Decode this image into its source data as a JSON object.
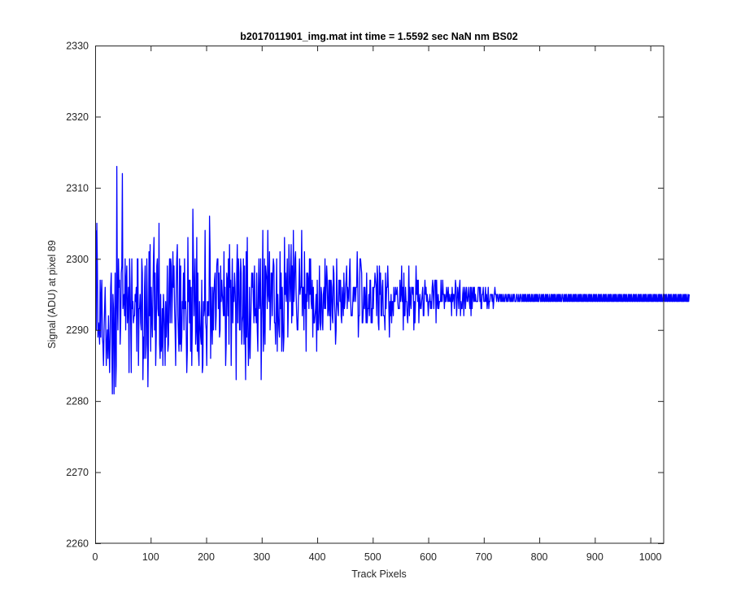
{
  "chart_data": {
    "type": "line",
    "title": "b2017011901_img.mat int time = 1.5592 sec  NaN nm BS02",
    "xlabel": "Track Pixels",
    "ylabel": "Signal (ADU) at pixel 89",
    "xlim": [
      0,
      1024
    ],
    "ylim": [
      2260,
      2330
    ],
    "xticks": [
      0,
      100,
      200,
      300,
      400,
      500,
      600,
      700,
      800,
      900,
      1000
    ],
    "yticks": [
      2260,
      2270,
      2280,
      2290,
      2300,
      2310,
      2320,
      2330
    ],
    "grid": false,
    "series": [
      {
        "color": "#0000ff",
        "x_start": 1,
        "x_step": 1,
        "y": [
          2304,
          2290,
          2305,
          2299,
          2289,
          2291,
          2290,
          2288,
          2297,
          2289,
          2295,
          2297,
          2289,
          2288,
          2285,
          2290,
          2293,
          2296,
          2291,
          2285,
          2288,
          2290,
          2286,
          2292,
          2288,
          2284,
          2289,
          2296,
          2298,
          2288,
          2281,
          2295,
          2293,
          2281,
          2290,
          2298,
          2282,
          2285,
          2313,
          2294,
          2290,
          2300,
          2296,
          2297,
          2288,
          2291,
          2298,
          2299,
          2312,
          2293,
          2294,
          2295,
          2292,
          2300,
          2290,
          2297,
          2299,
          2291,
          2293,
          2296,
          2284,
          2300,
          2296,
          2291,
          2284,
          2300,
          2293,
          2294,
          2291,
          2292,
          2292,
          2295,
          2294,
          2296,
          2287,
          2300,
          2300,
          2285,
          2293,
          2293,
          2295,
          2291,
          2290,
          2300,
          2298,
          2283,
          2289,
          2286,
          2296,
          2299,
          2286,
          2288,
          2300,
          2293,
          2282,
          2289,
          2301,
          2292,
          2302,
          2287,
          2296,
          2292,
          2289,
          2295,
          2300,
          2303,
          2290,
          2298,
          2285,
          2289,
          2299,
          2300,
          2293,
          2292,
          2305,
          2288,
          2286,
          2295,
          2287,
          2288,
          2293,
          2285,
          2295,
          2293,
          2290,
          2285,
          2294,
          2289,
          2292,
          2299,
          2287,
          2288,
          2296,
          2300,
          2291,
          2300,
          2299,
          2291,
          2295,
          2301,
          2296,
          2299,
          2293,
          2290,
          2285,
          2296,
          2300,
          2302,
          2292,
          2289,
          2287,
          2300,
          2288,
          2299,
          2287,
          2289,
          2294,
          2293,
          2298,
          2290,
          2300,
          2293,
          2294,
          2290,
          2284,
          2287,
          2303,
          2294,
          2297,
          2291,
          2297,
          2287,
          2296,
          2285,
          2291,
          2307,
          2300,
          2292,
          2296,
          2300,
          2288,
          2290,
          2303,
          2287,
          2298,
          2287,
          2285,
          2294,
          2291,
          2289,
          2288,
          2297,
          2284,
          2285,
          2294,
          2292,
          2293,
          2304,
          2291,
          2290,
          2285,
          2294,
          2292,
          2294,
          2292,
          2306,
          2301,
          2286,
          2296,
          2291,
          2288,
          2296,
          2290,
          2295,
          2297,
          2298,
          2290,
          2292,
          2299,
          2300,
          2300,
          2293,
          2298,
          2289,
          2290,
          2299,
          2294,
          2297,
          2295,
          2294,
          2292,
          2301,
          2292,
          2296,
          2285,
          2288,
          2298,
          2297,
          2292,
          2300,
          2288,
          2302,
          2296,
          2297,
          2285,
          2294,
          2300,
          2291,
          2296,
          2294,
          2298,
          2296,
          2293,
          2283,
          2298,
          2302,
          2291,
          2300,
          2298,
          2290,
          2290,
          2300,
          2298,
          2288,
          2291,
          2292,
          2300,
          2288,
          2299,
          2290,
          2283,
          2301,
          2289,
          2303,
          2291,
          2285,
          2288,
          2296,
          2286,
          2290,
          2294,
          2298,
          2296,
          2298,
          2294,
          2291,
          2299,
          2292,
          2293,
          2291,
          2298,
          2290,
          2287,
          2296,
          2300,
          2293,
          2294,
          2300,
          2283,
          2291,
          2295,
          2304,
          2287,
          2290,
          2300,
          2288,
          2299,
          2298,
          2297,
          2293,
          2304,
          2295,
          2294,
          2301,
          2290,
          2292,
          2298,
          2298,
          2292,
          2298,
          2300,
          2299,
          2291,
          2291,
          2288,
          2294,
          2300,
          2287,
          2295,
          2292,
          2290,
          2289,
          2301,
          2293,
          2298,
          2287,
          2296,
          2291,
          2287,
          2289,
          2303,
          2295,
          2298,
          2294,
          2296,
          2300,
          2289,
          2293,
          2302,
          2298,
          2294,
          2297,
          2302,
          2291,
          2299,
          2292,
          2304,
          2294,
          2296,
          2300,
          2301,
          2295,
          2292,
          2290,
          2290,
          2294,
          2296,
          2300,
          2295,
          2296,
          2296,
          2304,
          2292,
          2296,
          2296,
          2290,
          2301,
          2293,
          2295,
          2287,
          2298,
          2294,
          2298,
          2297,
          2293,
          2300,
          2295,
          2300,
          2294,
          2293,
          2297,
          2289,
          2296,
          2291,
          2291,
          2292,
          2293,
          2295,
          2287,
          2297,
          2290,
          2290,
          2293,
          2299,
          2291,
          2290,
          2296,
          2295,
          2291,
          2290,
          2295,
          2296,
          2293,
          2300,
          2293,
          2296,
          2299,
          2297,
          2292,
          2293,
          2297,
          2292,
          2297,
          2290,
          2297,
          2296,
          2292,
          2291,
          2299,
          2298,
          2294,
          2292,
          2288,
          2290,
          2300,
          2294,
          2293,
          2292,
          2297,
          2297,
          2294,
          2297,
          2292,
          2291,
          2296,
          2294,
          2292,
          2298,
          2293,
          2294,
          2296,
          2297,
          2299,
          2293,
          2296,
          2295,
          2294,
          2298,
          2300,
          2295,
          2292,
          2292,
          2292,
          2294,
          2296,
          2294,
          2296,
          2296,
          2294,
          2296,
          2296,
          2301,
          2297,
          2289,
          2292,
          2292,
          2300,
          2300,
          2299,
          2298,
          2291,
          2291,
          2293,
          2296,
          2293,
          2296,
          2294,
          2291,
          2298,
          2291,
          2293,
          2293,
          2295,
          2292,
          2297,
          2297,
          2291,
          2293,
          2291,
          2296,
          2293,
          2296,
          2296,
          2298,
          2297,
          2296,
          2292,
          2299,
          2297,
          2291,
          2290,
          2299,
          2295,
          2298,
          2292,
          2292,
          2296,
          2297,
          2292,
          2292,
          2292,
          2290,
          2298,
          2293,
          2296,
          2296,
          2299,
          2296,
          2293,
          2289,
          2294,
          2292,
          2295,
          2291,
          2294,
          2294,
          2292,
          2296,
          2294,
          2294,
          2296,
          2295,
          2295,
          2296,
          2294,
          2293,
          2293,
          2293,
          2297,
          2294,
          2295,
          2299,
          2294,
          2296,
          2290,
          2298,
          2292,
          2292,
          2296,
          2294,
          2294,
          2292,
          2291,
          2294,
          2299,
          2292,
          2296,
          2294,
          2293,
          2296,
          2296,
          2295,
          2296,
          2290,
          2294,
          2291,
          2294,
          2299,
          2295,
          2297,
          2294,
          2297,
          2291,
          2294,
          2295,
          2293,
          2293,
          2294,
          2295,
          2296,
          2292,
          2292,
          2295,
          2297,
          2295,
          2296,
          2294,
          2295,
          2294,
          2292,
          2294,
          2294,
          2295,
          2293,
          2294,
          2293,
          2296,
          2297,
          2295,
          2293,
          2296,
          2297,
          2297,
          2291,
          2297,
          2294,
          2293,
          2295,
          2293,
          2294,
          2294,
          2294,
          2297,
          2294,
          2294,
          2297,
          2295,
          2295,
          2293,
          2295,
          2294,
          2294,
          2296,
          2295,
          2294,
          2296,
          2294,
          2295,
          2294,
          2294,
          2295,
          2292,
          2296,
          2294,
          2295,
          2295,
          2293,
          2295,
          2297,
          2296,
          2292,
          2294,
          2296,
          2295,
          2293,
          2296,
          2297,
          2292,
          2294,
          2293,
          2293,
          2295,
          2296,
          2292,
          2295,
          2296,
          2293,
          2295,
          2296,
          2294,
          2294,
          2295,
          2296,
          2294,
          2293,
          2296,
          2292,
          2296,
          2293,
          2295,
          2296,
          2294,
          2296,
          2294,
          2295,
          2294,
          2294,
          2294,
          2294,
          2296,
          2296,
          2296,
          2294,
          2296,
          2293,
          2293,
          2295,
          2295,
          2296,
          2294,
          2294,
          2294,
          2296,
          2294,
          2295,
          2293,
          2294,
          2296,
          2293,
          2294,
          2294,
          2295,
          2295,
          2295,
          2294,
          2295,
          2293,
          2294,
          2295,
          2296,
          2295,
          2295,
          2294,
          2295,
          2295,
          2294,
          2294,
          2295,
          2295,
          2294,
          2295,
          2294,
          2295,
          2294,
          2294,
          2295,
          2294,
          2294,
          2295,
          2295,
          2294,
          2294,
          2295,
          2294,
          2295,
          2295,
          2294,
          2294,
          2295,
          2294,
          2294,
          2295,
          2294,
          2295,
          2295,
          2294,
          2294,
          2294,
          2295,
          2295,
          2294,
          2294,
          2295,
          2294,
          2294,
          2295,
          2295,
          2294,
          2294,
          2295,
          2294,
          2295,
          2294,
          2295,
          2294,
          2295,
          2294,
          2294,
          2295,
          2294,
          2295,
          2294,
          2295,
          2294,
          2294,
          2295,
          2294,
          2295,
          2294,
          2294,
          2295,
          2294,
          2295,
          2294,
          2295,
          2294,
          2295,
          2294,
          2294,
          2295,
          2295,
          2294,
          2294,
          2295,
          2294,
          2295,
          2294,
          2295,
          2294,
          2294,
          2295,
          2294,
          2295,
          2294,
          2295,
          2294,
          2294,
          2295,
          2294,
          2294,
          2295,
          2294,
          2295,
          2294,
          2295,
          2294,
          2295,
          2294,
          2295,
          2294,
          2294,
          2295,
          2294,
          2295,
          2294,
          2295,
          2294,
          2295,
          2294,
          2294,
          2295,
          2295,
          2294,
          2294,
          2295,
          2294,
          2295,
          2294,
          2295,
          2294,
          2294,
          2295,
          2294,
          2295,
          2294,
          2295,
          2294,
          2295,
          2294,
          2294,
          2295,
          2294,
          2295,
          2294,
          2295,
          2294,
          2295,
          2294,
          2294,
          2295,
          2294,
          2295,
          2294,
          2295,
          2294,
          2295,
          2294,
          2294,
          2295,
          2294,
          2295,
          2294,
          2295,
          2294,
          2295,
          2294,
          2294,
          2295,
          2294,
          2295,
          2294,
          2295,
          2294,
          2295,
          2294,
          2294,
          2295,
          2294,
          2295,
          2294,
          2295,
          2294,
          2295,
          2294,
          2294,
          2295,
          2294,
          2295,
          2294,
          2295,
          2294,
          2295,
          2294,
          2294,
          2295,
          2294,
          2295,
          2294,
          2295,
          2294,
          2295,
          2294,
          2294,
          2295,
          2294,
          2295,
          2294,
          2295,
          2294,
          2295,
          2294,
          2294,
          2295,
          2294,
          2295,
          2294,
          2295,
          2294,
          2295,
          2294,
          2294,
          2295,
          2294,
          2295,
          2294,
          2295,
          2294,
          2295,
          2294,
          2294,
          2295,
          2294,
          2295,
          2294,
          2295,
          2294,
          2295,
          2294,
          2294,
          2295,
          2294,
          2295,
          2294,
          2295,
          2294,
          2295,
          2294,
          2294,
          2295,
          2294,
          2295,
          2294,
          2295,
          2294,
          2295,
          2294,
          2294,
          2295,
          2294,
          2295,
          2294,
          2295,
          2294,
          2295,
          2294,
          2294,
          2295,
          2294,
          2295,
          2294,
          2295,
          2294,
          2295,
          2294,
          2294,
          2295,
          2294,
          2295,
          2294,
          2295,
          2294,
          2295,
          2294,
          2294,
          2295,
          2294,
          2295,
          2294,
          2295,
          2294,
          2295,
          2294,
          2294,
          2295,
          2294,
          2295,
          2294,
          2295,
          2294,
          2295,
          2294,
          2294,
          2295,
          2294,
          2295,
          2294,
          2295,
          2294,
          2295,
          2294,
          2294,
          2295,
          2294,
          2295,
          2294,
          2295,
          2294,
          2295,
          2294,
          2294,
          2295,
          2294,
          2295,
          2294,
          2295,
          2294,
          2295,
          2294,
          2294,
          2295,
          2294,
          2295,
          2294,
          2295,
          2294,
          2295,
          2294,
          2294,
          2295,
          2294,
          2295,
          2294,
          2295,
          2294,
          2295,
          2294,
          2294,
          2295,
          2294,
          2295
        ]
      }
    ]
  }
}
